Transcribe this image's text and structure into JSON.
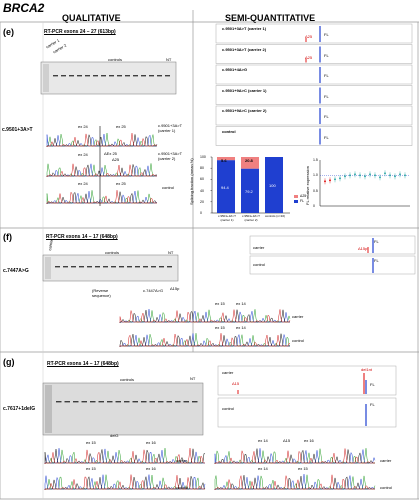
{
  "figure": {
    "title": "BRCA2",
    "col_qualitative": "QUALITATIVE",
    "col_semi": "SEMI-QUANTITATIVE"
  },
  "panel_e": {
    "label": "(e)",
    "variant": "c.9501+3A>T",
    "gel_title": "RT-PCR exons 24 – 27 (613bp)",
    "gel_carrier1": "carrier 1",
    "gel_carrier2": "carrier 2",
    "gel_controls": "controls",
    "gel_nt": "NT",
    "seq_ex24": "ex 24",
    "seq_ex25": "ex 25",
    "seq_delta": "ΔEx 25",
    "seq_d25": "Δ25",
    "seq_v1a": "c.9501+3A>T",
    "seq_v1b": "(carrier 1)",
    "seq_v2a": "c.9501+3A>T",
    "seq_v2b": "(carrier 2)",
    "seq_control": "control",
    "fa_traces": [
      {
        "label": "c.9501+3A>T (carrier 1)",
        "delta": "Δ25",
        "fl": "FL"
      },
      {
        "label": "c.9501+3A>T (carrier 2)",
        "delta": "Δ25",
        "fl": "FL"
      },
      {
        "label": "c.9501+4A>G",
        "delta": "",
        "fl": "FL"
      },
      {
        "label": "c.9501+9A>C (carrier 1)",
        "delta": "",
        "fl": "FL"
      },
      {
        "label": "c.9501+9A>C (carrier 2)",
        "delta": "",
        "fl": "FL"
      },
      {
        "label": "control",
        "delta": "",
        "fl": "FL"
      }
    ],
    "bar_chart": {
      "ylabel": "Splicing fraction (mean %)",
      "categories": [
        "c.9501+3A>T (carrier 1)",
        "c.9501+3A>T (carrier 2)",
        "controls (n=16)"
      ],
      "fl": [
        94.4,
        79.2,
        100
      ],
      "d25": [
        5.6,
        20.8,
        0
      ],
      "top_labels": [
        "5.6",
        "20.8",
        ""
      ],
      "mid_labels": [
        "94.4",
        "79.2",
        "100"
      ],
      "legend": [
        "Δ25",
        "FL"
      ],
      "yticks": [
        "100",
        "80",
        "60",
        "40",
        "20",
        "0"
      ],
      "colors": {
        "fl": "#1f3fd0",
        "d25": "#f08080"
      }
    },
    "scatter": {
      "ylabel": "FL relative expression",
      "yticks": [
        "1.5",
        "1.0",
        "0.5",
        "0"
      ]
    }
  },
  "panel_f": {
    "label": "(f)",
    "variant": "c.7447A>G",
    "gel_title": "RT-PCR exons 14 – 17 (648bp)",
    "gel_carrier": "carrier",
    "gel_controls": "controls",
    "gel_nt": "NT",
    "fa_carrier": "carrier",
    "fa_control": "control",
    "fa_delta": "Δ15p",
    "fa_fl": "FL",
    "seq_reverse1": "(Reverse",
    "seq_reverse2": "sequence)",
    "seq_variant": "c.7447A>G",
    "seq_d15p": "Δ15p",
    "seq_ex15": "ex 15",
    "seq_ex14": "ex 14",
    "seq_carrier": "carrier",
    "seq_control": "control"
  },
  "panel_g": {
    "label": "(g)",
    "variant": "c.7617+1delG",
    "gel_title": "RT-PCR exons 14 – 17 (648bp)",
    "gel_controls": "controls",
    "gel_nt": "NT",
    "fa_carrier": "carrier",
    "fa_control": "control",
    "fa_d15": "Δ15",
    "fa_del": "del1nt",
    "fa_fl": "FL",
    "seq_delg": "delG",
    "seq_ex15": "ex 15",
    "seq_ex16": "ex 16",
    "seq_ex14": "ex 14",
    "seq_d15": "Δ15",
    "seq_carrier": "carrier",
    "seq_control": "control"
  }
}
